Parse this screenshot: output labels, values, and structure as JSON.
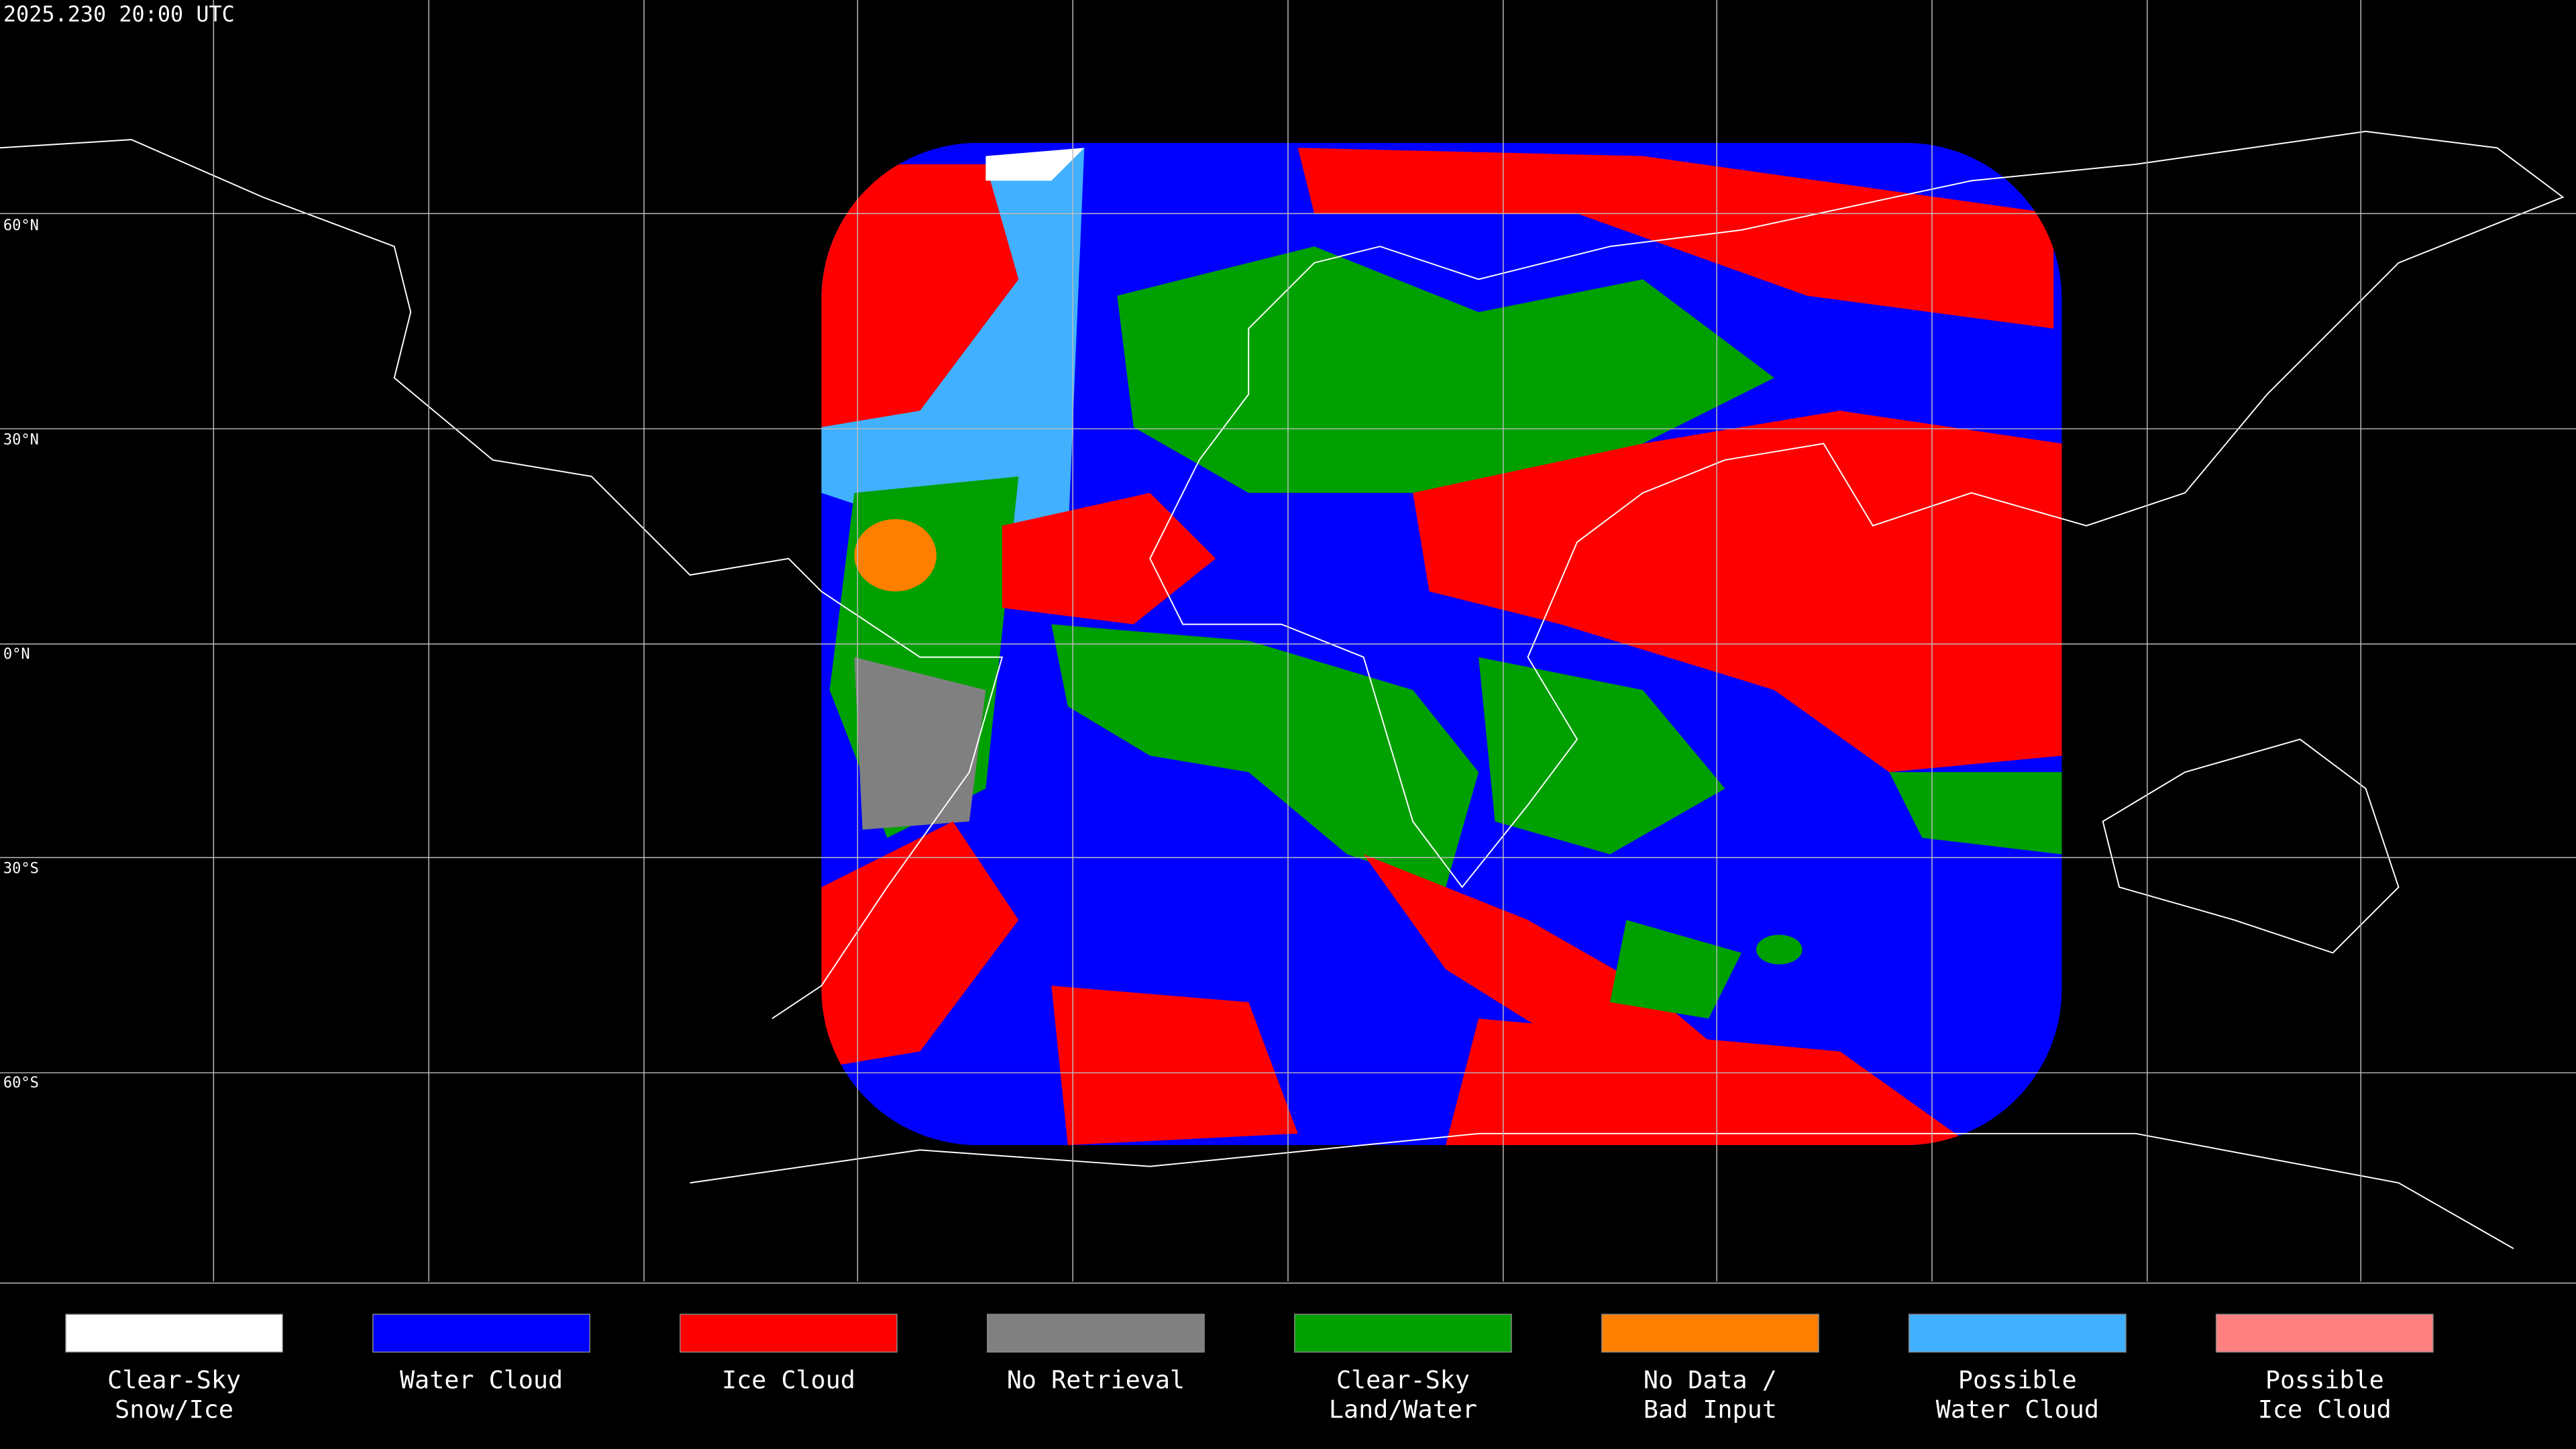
{
  "header": {
    "title": "2025.230 20:00 UTC"
  },
  "map": {
    "latitude_labels": [
      "60°N",
      "30°N",
      "0°N",
      "30°S",
      "60°S"
    ]
  },
  "legend": {
    "items": [
      {
        "lines": [
          "Clear-Sky",
          "Snow/Ice"
        ],
        "color": "#ffffff"
      },
      {
        "lines": [
          "Water Cloud"
        ],
        "color": "#0000ff"
      },
      {
        "lines": [
          "Ice Cloud"
        ],
        "color": "#ff0000"
      },
      {
        "lines": [
          "No Retrieval"
        ],
        "color": "#808080"
      },
      {
        "lines": [
          "Clear-Sky",
          "Land/Water"
        ],
        "color": "#00a000"
      },
      {
        "lines": [
          "No Data /",
          "Bad Input"
        ],
        "color": "#ff8000"
      },
      {
        "lines": [
          "Possible",
          "Water Cloud"
        ],
        "color": "#40b0ff"
      },
      {
        "lines": [
          "Possible",
          "Ice Cloud"
        ],
        "color": "#ff8080"
      }
    ]
  }
}
